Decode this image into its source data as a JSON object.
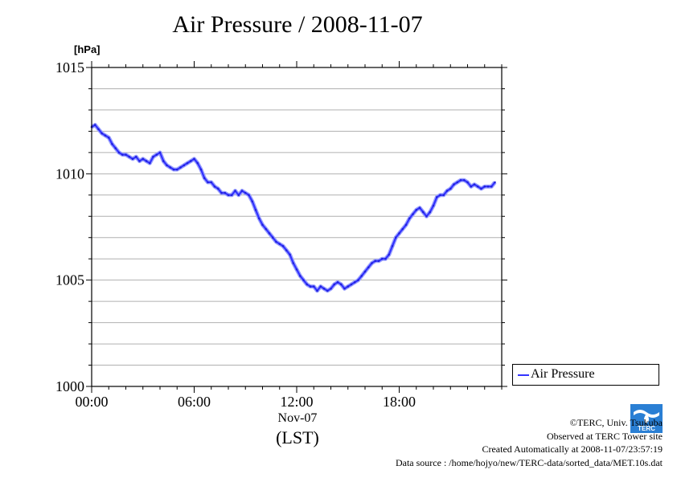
{
  "chart_data": {
    "type": "line",
    "title": "Air Pressure / 2008-11-07",
    "ylabel": "[hPa]",
    "ylim": [
      1000,
      1015
    ],
    "yticks": [
      1000,
      1005,
      1010,
      1015
    ],
    "xlim": [
      0,
      24
    ],
    "xticks": [
      0,
      6,
      12,
      18
    ],
    "xtick_labels": [
      "00:00",
      "06:00",
      "12:00",
      "18:00"
    ],
    "xlabel_date": "Nov-07",
    "xlabel_tz": "(LST)",
    "grid": true,
    "legend_position": "right",
    "series": [
      {
        "name": "Air Pressure",
        "color": "#3333ff",
        "x": [
          0.0,
          0.2,
          0.4,
          0.6,
          0.8,
          1.0,
          1.2,
          1.4,
          1.6,
          1.8,
          2.0,
          2.2,
          2.4,
          2.6,
          2.8,
          3.0,
          3.2,
          3.4,
          3.6,
          3.8,
          4.0,
          4.2,
          4.4,
          4.6,
          4.8,
          5.0,
          5.2,
          5.4,
          5.6,
          5.8,
          6.0,
          6.2,
          6.4,
          6.6,
          6.8,
          7.0,
          7.2,
          7.4,
          7.6,
          7.8,
          8.0,
          8.2,
          8.4,
          8.6,
          8.8,
          9.0,
          9.2,
          9.4,
          9.6,
          9.8,
          10.0,
          10.2,
          10.4,
          10.6,
          10.8,
          11.0,
          11.2,
          11.4,
          11.6,
          11.8,
          12.0,
          12.2,
          12.4,
          12.6,
          12.8,
          13.0,
          13.2,
          13.4,
          13.6,
          13.8,
          14.0,
          14.2,
          14.4,
          14.6,
          14.8,
          15.0,
          15.2,
          15.4,
          15.6,
          15.8,
          16.0,
          16.2,
          16.4,
          16.6,
          16.8,
          17.0,
          17.2,
          17.4,
          17.6,
          17.8,
          18.0,
          18.2,
          18.4,
          18.6,
          18.8,
          19.0,
          19.2,
          19.4,
          19.6,
          19.8,
          20.0,
          20.2,
          20.4,
          20.6,
          20.8,
          21.0,
          21.2,
          21.4,
          21.6,
          21.8,
          22.0,
          22.2,
          22.4,
          22.6,
          22.8,
          23.0,
          23.2,
          23.4,
          23.6
        ],
        "values": [
          1012.2,
          1012.3,
          1012.1,
          1011.9,
          1011.8,
          1011.7,
          1011.4,
          1011.2,
          1011.0,
          1010.9,
          1010.9,
          1010.8,
          1010.7,
          1010.8,
          1010.6,
          1010.7,
          1010.6,
          1010.5,
          1010.8,
          1010.9,
          1011.0,
          1010.6,
          1010.4,
          1010.3,
          1010.2,
          1010.2,
          1010.3,
          1010.4,
          1010.5,
          1010.6,
          1010.7,
          1010.5,
          1010.2,
          1009.8,
          1009.6,
          1009.6,
          1009.4,
          1009.3,
          1009.1,
          1009.1,
          1009.0,
          1009.0,
          1009.2,
          1009.0,
          1009.2,
          1009.1,
          1009.0,
          1008.7,
          1008.3,
          1007.9,
          1007.6,
          1007.4,
          1007.2,
          1007.0,
          1006.8,
          1006.7,
          1006.6,
          1006.4,
          1006.2,
          1005.8,
          1005.5,
          1005.2,
          1005.0,
          1004.8,
          1004.7,
          1004.7,
          1004.5,
          1004.7,
          1004.6,
          1004.5,
          1004.6,
          1004.8,
          1004.9,
          1004.8,
          1004.6,
          1004.7,
          1004.8,
          1004.9,
          1005.0,
          1005.2,
          1005.4,
          1005.6,
          1005.8,
          1005.9,
          1005.9,
          1006.0,
          1006.0,
          1006.2,
          1006.6,
          1007.0,
          1007.2,
          1007.4,
          1007.6,
          1007.9,
          1008.1,
          1008.3,
          1008.4,
          1008.2,
          1008.0,
          1008.2,
          1008.5,
          1008.9,
          1009.0,
          1009.0,
          1009.2,
          1009.3,
          1009.5,
          1009.6,
          1009.7,
          1009.7,
          1009.6,
          1009.4,
          1009.5,
          1009.4,
          1009.3,
          1009.4,
          1009.4,
          1009.4,
          1009.6
        ]
      }
    ]
  },
  "legend": {
    "label": "Air Pressure"
  },
  "credits": {
    "copyright": "©TERC, Univ. Tsukuba",
    "site": "Observed at TERC Tower site",
    "created": "Created Automatically at 2008-11-07/23:57:19",
    "source": "Data source : /home/hojyo/new/TERC-data/sorted_data/MET.10s.dat"
  },
  "logo": {
    "text": "TERC",
    "icon": "terc-logo-icon",
    "color": "#2a7fd4"
  }
}
